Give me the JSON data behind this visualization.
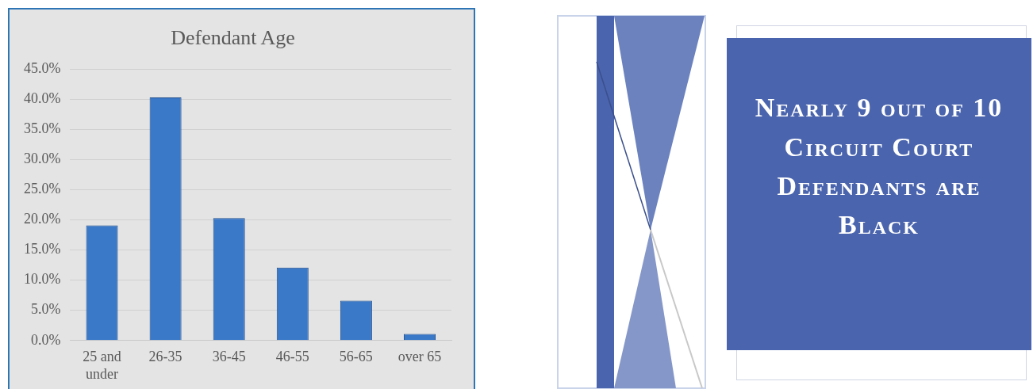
{
  "chart_data": [
    {
      "type": "bar",
      "title": "Defendant Age",
      "categories": [
        "25 and under",
        "26-35",
        "36-45",
        "46-55",
        "56-65",
        "over 65"
      ],
      "values": [
        19.1,
        40.3,
        20.3,
        12.1,
        6.6,
        1.1
      ],
      "color": "#3a78c8",
      "ylim": [
        0,
        45
      ],
      "yticks": [
        {
          "value": 0,
          "label": "0.0%"
        },
        {
          "value": 5,
          "label": "5.0%"
        },
        {
          "value": 10,
          "label": "10.0%"
        },
        {
          "value": 15,
          "label": "15.0%"
        },
        {
          "value": 20,
          "label": "20.0%"
        },
        {
          "value": 25,
          "label": "25.0%"
        },
        {
          "value": 30,
          "label": "30.0%"
        },
        {
          "value": 35,
          "label": "35.0%"
        },
        {
          "value": 40,
          "label": "40.0%"
        },
        {
          "value": 45,
          "label": "45.0%"
        }
      ],
      "grid": "y",
      "legend": false
    },
    {
      "type": "other",
      "title": "Nearly 9 out of 10 Circuit Court Defendants are Black"
    }
  ]
}
